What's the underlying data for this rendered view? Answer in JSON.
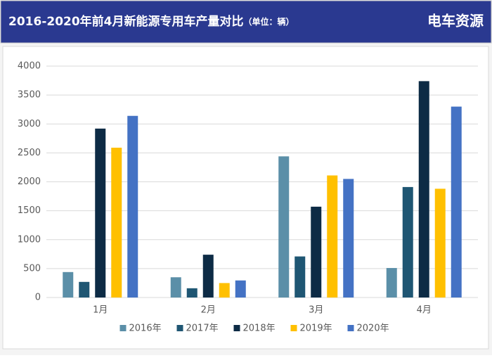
{
  "chart_data": {
    "type": "bar",
    "title": "2016-2020年前4月新能源专用车产量对比",
    "title_unit": "（单位：辆）",
    "logo": "电车资源",
    "categories": [
      "1月",
      "2月",
      "3月",
      "4月"
    ],
    "series": [
      {
        "name": "2016年",
        "color": "#5b8fa8",
        "values": [
          440,
          350,
          2440,
          510
        ]
      },
      {
        "name": "2017年",
        "color": "#1f5673",
        "values": [
          270,
          160,
          710,
          1910
        ]
      },
      {
        "name": "2018年",
        "color": "#0d2b45",
        "values": [
          2920,
          740,
          1570,
          3740
        ]
      },
      {
        "name": "2019年",
        "color": "#ffc000",
        "values": [
          2590,
          250,
          2110,
          1880
        ]
      },
      {
        "name": "2020年",
        "color": "#4472c4",
        "values": [
          3140,
          295,
          2050,
          3300
        ]
      }
    ],
    "ylim": [
      0,
      4000
    ],
    "yticks": [
      0,
      500,
      1000,
      1500,
      2000,
      2500,
      3000,
      3500,
      4000
    ],
    "grid": true,
    "legend": "bottom"
  }
}
